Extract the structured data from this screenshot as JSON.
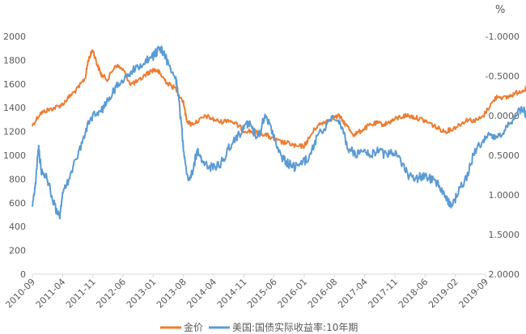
{
  "chart_data": {
    "type": "line",
    "right_unit": "%",
    "x_ticks": [
      "2010-09",
      "2011-04",
      "2011-11",
      "2012-06",
      "2013-01",
      "2013-08",
      "2014-04",
      "2014-11",
      "2015-06",
      "2016-01",
      "2016-08",
      "2017-04",
      "2017-11",
      "2018-06",
      "2019-02",
      "2019-09"
    ],
    "left_axis": {
      "min": 0,
      "max": 2000,
      "ticks": [
        "0",
        "200",
        "400",
        "600",
        "800",
        "1000",
        "1200",
        "1400",
        "1600",
        "1800",
        "2000"
      ]
    },
    "right_axis": {
      "reversed": true,
      "min": -1.0,
      "max": 2.0,
      "ticks": [
        "-1.0000",
        "-0.5000",
        "0.0000",
        "0.5000",
        "1.0000",
        "1.5000",
        "2.0000"
      ]
    },
    "grid": false,
    "legend_position": "bottom",
    "series": [
      {
        "name": "金价",
        "axis": "left",
        "color": "#ED7D31",
        "points": [
          [
            0,
            1250
          ],
          [
            0.25,
            1350
          ],
          [
            0.5,
            1380
          ],
          [
            0.75,
            1400
          ],
          [
            1.0,
            1430
          ],
          [
            1.25,
            1500
          ],
          [
            1.5,
            1560
          ],
          [
            1.75,
            1650
          ],
          [
            1.85,
            1800
          ],
          [
            2.0,
            1890
          ],
          [
            2.15,
            1760
          ],
          [
            2.3,
            1670
          ],
          [
            2.5,
            1640
          ],
          [
            2.75,
            1760
          ],
          [
            3.0,
            1720
          ],
          [
            3.25,
            1600
          ],
          [
            3.5,
            1620
          ],
          [
            3.75,
            1680
          ],
          [
            4.0,
            1720
          ],
          [
            4.15,
            1710
          ],
          [
            4.3,
            1660
          ],
          [
            4.5,
            1600
          ],
          [
            4.75,
            1560
          ],
          [
            5.0,
            1450
          ],
          [
            5.1,
            1300
          ],
          [
            5.25,
            1260
          ],
          [
            5.5,
            1290
          ],
          [
            5.75,
            1330
          ],
          [
            6.0,
            1300
          ],
          [
            6.25,
            1280
          ],
          [
            6.5,
            1300
          ],
          [
            6.75,
            1260
          ],
          [
            7.0,
            1210
          ],
          [
            7.25,
            1200
          ],
          [
            7.5,
            1190
          ],
          [
            7.75,
            1170
          ],
          [
            8.0,
            1130
          ],
          [
            8.25,
            1110
          ],
          [
            8.5,
            1100
          ],
          [
            8.75,
            1070
          ],
          [
            9.0,
            1080
          ],
          [
            9.15,
            1140
          ],
          [
            9.4,
            1240
          ],
          [
            9.65,
            1280
          ],
          [
            9.9,
            1310
          ],
          [
            10.15,
            1330
          ],
          [
            10.4,
            1250
          ],
          [
            10.65,
            1170
          ],
          [
            10.9,
            1210
          ],
          [
            11.15,
            1250
          ],
          [
            11.4,
            1270
          ],
          [
            11.65,
            1260
          ],
          [
            11.9,
            1290
          ],
          [
            12.15,
            1320
          ],
          [
            12.4,
            1335
          ],
          [
            12.65,
            1320
          ],
          [
            12.9,
            1300
          ],
          [
            13.15,
            1270
          ],
          [
            13.4,
            1230
          ],
          [
            13.65,
            1200
          ],
          [
            13.9,
            1220
          ],
          [
            14.15,
            1260
          ],
          [
            14.4,
            1300
          ],
          [
            14.65,
            1290
          ],
          [
            14.9,
            1320
          ],
          [
            15.15,
            1420
          ],
          [
            15.4,
            1500
          ],
          [
            15.65,
            1480
          ],
          [
            15.9,
            1510
          ],
          [
            16.15,
            1540
          ],
          [
            16.35,
            1560
          ]
        ]
      },
      {
        "name": "美国:国债实际收益率:10年期",
        "axis": "right",
        "color": "#5B9BD5",
        "points": [
          [
            0,
            1.1
          ],
          [
            0.1,
            0.9
          ],
          [
            0.2,
            0.4
          ],
          [
            0.3,
            0.7
          ],
          [
            0.5,
            0.8
          ],
          [
            0.7,
            1.1
          ],
          [
            0.9,
            1.3
          ],
          [
            1.0,
            1.0
          ],
          [
            1.2,
            0.8
          ],
          [
            1.5,
            0.5
          ],
          [
            1.75,
            0.2
          ],
          [
            2.0,
            0.0
          ],
          [
            2.25,
            -0.05
          ],
          [
            2.5,
            -0.2
          ],
          [
            2.75,
            -0.35
          ],
          [
            3.0,
            -0.45
          ],
          [
            3.25,
            -0.55
          ],
          [
            3.5,
            -0.6
          ],
          [
            3.75,
            -0.7
          ],
          [
            4.0,
            -0.75
          ],
          [
            4.2,
            -0.85
          ],
          [
            4.35,
            -0.8
          ],
          [
            4.5,
            -0.65
          ],
          [
            4.75,
            -0.45
          ],
          [
            4.85,
            -0.2
          ],
          [
            5.0,
            0.4
          ],
          [
            5.15,
            0.8
          ],
          [
            5.3,
            0.7
          ],
          [
            5.45,
            0.45
          ],
          [
            5.6,
            0.55
          ],
          [
            5.8,
            0.65
          ],
          [
            6.0,
            0.65
          ],
          [
            6.25,
            0.6
          ],
          [
            6.5,
            0.4
          ],
          [
            6.75,
            0.3
          ],
          [
            7.0,
            0.15
          ],
          [
            7.2,
            0.1
          ],
          [
            7.45,
            0.3
          ],
          [
            7.7,
            0.0
          ],
          [
            7.95,
            0.2
          ],
          [
            8.2,
            0.5
          ],
          [
            8.45,
            0.6
          ],
          [
            8.7,
            0.65
          ],
          [
            8.95,
            0.6
          ],
          [
            9.2,
            0.5
          ],
          [
            9.45,
            0.25
          ],
          [
            9.7,
            0.15
          ],
          [
            9.95,
            0.0
          ],
          [
            10.2,
            0.1
          ],
          [
            10.45,
            0.4
          ],
          [
            10.7,
            0.5
          ],
          [
            10.95,
            0.4
          ],
          [
            11.2,
            0.5
          ],
          [
            11.45,
            0.45
          ],
          [
            11.7,
            0.5
          ],
          [
            11.95,
            0.45
          ],
          [
            12.2,
            0.6
          ],
          [
            12.45,
            0.75
          ],
          [
            12.7,
            0.8
          ],
          [
            12.95,
            0.75
          ],
          [
            13.2,
            0.8
          ],
          [
            13.45,
            0.85
          ],
          [
            13.7,
            1.05
          ],
          [
            13.9,
            1.15
          ],
          [
            14.1,
            0.95
          ],
          [
            14.35,
            0.8
          ],
          [
            14.6,
            0.5
          ],
          [
            14.85,
            0.35
          ],
          [
            15.1,
            0.2
          ],
          [
            15.35,
            0.3
          ],
          [
            15.6,
            0.2
          ],
          [
            15.85,
            0.1
          ],
          [
            16.1,
            -0.05
          ],
          [
            16.25,
            -0.1
          ],
          [
            16.35,
            0.0
          ]
        ]
      }
    ]
  }
}
